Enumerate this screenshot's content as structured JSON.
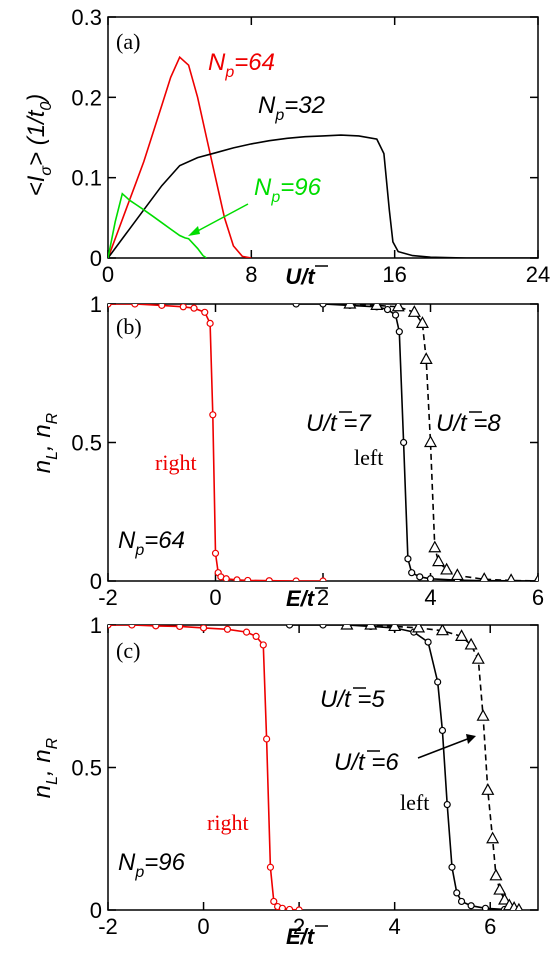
{
  "chart_data": [
    {
      "type": "line",
      "panel_label": "(a)",
      "xlabel": "U/t̄",
      "ylabel": "<I_σ> (1/t_0)",
      "xlim": [
        0,
        24
      ],
      "ylim": [
        0,
        0.3
      ],
      "x_ticks": [
        "0",
        "8",
        "16",
        "24"
      ],
      "y_ticks": [
        "0",
        "0.1",
        "0.2",
        "0.3"
      ],
      "series": [
        {
          "name": "N_p=64",
          "color": "#ee0000",
          "x": [
            0,
            0.5,
            1,
            1.5,
            2,
            2.5,
            3,
            3.5,
            4,
            4.5,
            5,
            5.5,
            6,
            6.5,
            7,
            7.5,
            8
          ],
          "y": [
            0,
            0.03,
            0.06,
            0.09,
            0.12,
            0.155,
            0.19,
            0.225,
            0.25,
            0.24,
            0.2,
            0.15,
            0.1,
            0.05,
            0.015,
            0.002,
            0
          ]
        },
        {
          "name": "N_p=32",
          "color": "#000000",
          "x": [
            0,
            1,
            2,
            3,
            4,
            5,
            6,
            7,
            8,
            9,
            10,
            11,
            12,
            13,
            14,
            15,
            15.4,
            15.7,
            15.9,
            16.2,
            17,
            18,
            20,
            22,
            24
          ],
          "y": [
            0,
            0.03,
            0.06,
            0.09,
            0.115,
            0.125,
            0.131,
            0.137,
            0.142,
            0.146,
            0.149,
            0.151,
            0.152,
            0.153,
            0.152,
            0.148,
            0.13,
            0.06,
            0.02,
            0.008,
            0.003,
            0.001,
            0,
            0,
            0
          ]
        },
        {
          "name": "N_p=96",
          "color": "#00dd00",
          "x": [
            0,
            0.4,
            0.8,
            1.2,
            1.6,
            2,
            2.5,
            3,
            3.5,
            4,
            4.3,
            4.5,
            5,
            5.3,
            5.5
          ],
          "y": [
            0,
            0.045,
            0.08,
            0.072,
            0.066,
            0.06,
            0.052,
            0.044,
            0.036,
            0.028,
            0.025,
            0.024,
            0.012,
            0.003,
            0
          ]
        }
      ],
      "annotations": {
        "n64": "N_p=64",
        "n32": "N_p=32",
        "n96": "N_p=96"
      }
    },
    {
      "type": "line",
      "panel_label": "(b)",
      "xlabel": "E/t̄",
      "ylabel": "n_L, n_R",
      "xlim": [
        -2,
        6
      ],
      "ylim": [
        0,
        1
      ],
      "x_ticks": [
        "-2",
        "0",
        "2",
        "4",
        "6"
      ],
      "y_ticks": [
        "0",
        "0.5",
        "1"
      ],
      "series": [
        {
          "name": "right",
          "color": "#ee0000",
          "x": [
            -2,
            -1.5,
            -1,
            -0.6,
            -0.4,
            -0.2,
            -0.1,
            -0.05,
            0,
            0.05,
            0.1,
            0.2,
            0.4,
            0.6,
            1,
            1.5,
            2
          ],
          "y": [
            1,
            1,
            0.995,
            0.99,
            0.985,
            0.97,
            0.93,
            0.6,
            0.1,
            0.03,
            0.015,
            0.008,
            0.004,
            0.002,
            0.001,
            0,
            0
          ]
        },
        {
          "name": "U/t̄=7",
          "color": "#000000",
          "x": [
            1.5,
            2,
            2.5,
            3,
            3.2,
            3.35,
            3.42,
            3.5,
            3.58,
            3.65,
            3.8,
            4,
            4.5,
            5,
            6
          ],
          "y": [
            1,
            1,
            0.995,
            0.99,
            0.98,
            0.96,
            0.9,
            0.5,
            0.08,
            0.03,
            0.015,
            0.008,
            0.003,
            0.001,
            0
          ]
        },
        {
          "name": "U/t̄=8",
          "color": "#000000",
          "dashed": true,
          "x": [
            2.5,
            3,
            3.4,
            3.7,
            3.85,
            3.92,
            4,
            4.08,
            4.15,
            4.3,
            4.5,
            5,
            5.5,
            6
          ],
          "y": [
            1,
            0.995,
            0.99,
            0.97,
            0.93,
            0.8,
            0.5,
            0.12,
            0.07,
            0.04,
            0.02,
            0.006,
            0.002,
            0
          ]
        }
      ],
      "annotations": {
        "np": "N_p=64",
        "right": "right",
        "left": "left",
        "u7": "U/t̄ =7",
        "u8": "U/t̄ =8"
      }
    },
    {
      "type": "line",
      "panel_label": "(c)",
      "xlabel": "E/t̄",
      "ylabel": "n_L, n_R",
      "xlim": [
        -2,
        7
      ],
      "ylim": [
        0,
        1
      ],
      "x_ticks": [
        "-2",
        "0",
        "2",
        "4",
        "6"
      ],
      "y_ticks": [
        "0",
        "0.5",
        "1"
      ],
      "series": [
        {
          "name": "right",
          "color": "#ee0000",
          "x": [
            -2,
            -1.5,
            -1,
            -0.5,
            0,
            0.5,
            0.9,
            1.1,
            1.25,
            1.32,
            1.4,
            1.47,
            1.55,
            1.65,
            1.8,
            2
          ],
          "y": [
            1,
            1,
            0.997,
            0.995,
            0.99,
            0.985,
            0.975,
            0.96,
            0.93,
            0.6,
            0.15,
            0.03,
            0.012,
            0.006,
            0.002,
            0
          ]
        },
        {
          "name": "U/t̄=5",
          "color": "#000000",
          "x": [
            1.8,
            2.5,
            3,
            3.5,
            4,
            4.4,
            4.7,
            4.9,
            5.0,
            5.1,
            5.2,
            5.3,
            5.4,
            5.6,
            5.9,
            6.3,
            6.6
          ],
          "y": [
            1,
            1,
            1,
            0.995,
            0.99,
            0.975,
            0.94,
            0.8,
            0.63,
            0.37,
            0.15,
            0.06,
            0.03,
            0.015,
            0.006,
            0.002,
            0
          ]
        },
        {
          "name": "U/t̄=6",
          "color": "#000000",
          "dashed": true,
          "x": [
            3,
            3.5,
            4,
            4.5,
            5,
            5.4,
            5.6,
            5.75,
            5.85,
            5.95,
            6.05,
            6.12,
            6.2,
            6.3,
            6.4,
            6.5,
            6.6
          ],
          "y": [
            1,
            1,
            0.995,
            0.99,
            0.98,
            0.96,
            0.93,
            0.88,
            0.68,
            0.42,
            0.25,
            0.12,
            0.07,
            0.035,
            0.015,
            0.006,
            0
          ]
        }
      ],
      "annotations": {
        "np": "N_p=96",
        "right": "right",
        "left": "left",
        "u5": "U/t̄ =5",
        "u6": "U/t̄ =6"
      }
    }
  ]
}
